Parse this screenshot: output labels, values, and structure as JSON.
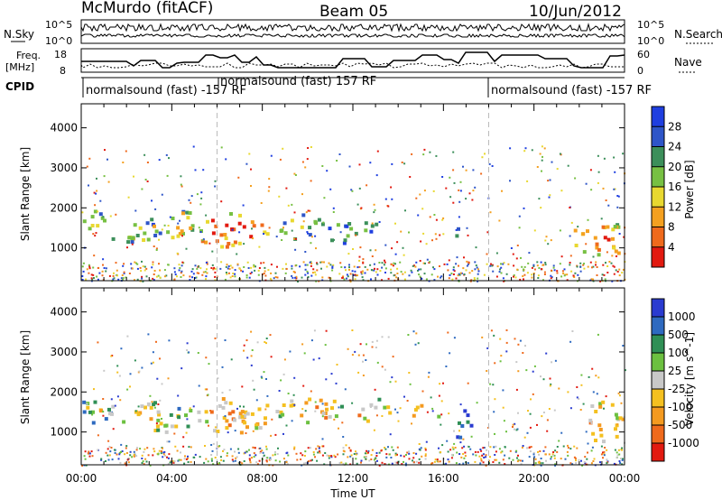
{
  "header": {
    "station": "McMurdo (fitACF)",
    "beam": "Beam 05",
    "date": "10/Jun/2012"
  },
  "top_panels": {
    "nsky_label": "N.Sky",
    "nsearch_label": "N.Search",
    "freq_label_1": "Freq.",
    "freq_label_2": "[MHz]",
    "nave_label": "Nave",
    "cpid_label": "CPID",
    "noise_left_ticks": [
      "10^5",
      "10^0"
    ],
    "noise_right_ticks": [
      "10^5",
      "10^0"
    ],
    "freq_ticks": [
      "18",
      "8"
    ],
    "nave_ticks": [
      "60",
      "0"
    ],
    "cpid_segments": [
      {
        "label": "normalsound (fast) -157 RF"
      },
      {
        "label": "normalsound (fast) 157 RF"
      },
      {
        "label": "normalsound (fast) -157 RF"
      }
    ]
  },
  "chart_data": [
    {
      "type": "heatmap",
      "name": "power",
      "ylabel": "Slant Range [km]",
      "ylim": [
        180,
        4600
      ],
      "yticks": [
        "1000",
        "2000",
        "3000",
        "4000"
      ],
      "xticks": [
        "00:00",
        "04:00",
        "08:00",
        "12:00",
        "16:00",
        "20:00",
        "00:00"
      ],
      "colorbar_label": "Power [dB]",
      "colorbar_ticks": [
        "4",
        "8",
        "12",
        "16",
        "20",
        "24",
        "28"
      ],
      "colorbar_colors": [
        "#1f3fe0",
        "#2e55c8",
        "#3c8f5a",
        "#77c043",
        "#e8d830",
        "#f4a020",
        "#ef6a1c",
        "#e21a10"
      ],
      "blobs": [
        {
          "t": 0.6,
          "r": 1700,
          "dt": 0.7,
          "dr": 300,
          "level": 0.45
        },
        {
          "t": 2.4,
          "r": 1400,
          "dt": 1.2,
          "dr": 300,
          "level": 0.5
        },
        {
          "t": 4.0,
          "r": 1650,
          "dt": 1.6,
          "dr": 350,
          "level": 0.65
        },
        {
          "t": 6.6,
          "r": 1450,
          "dt": 1.6,
          "dr": 450,
          "level": 0.85
        },
        {
          "t": 9.6,
          "r": 1600,
          "dt": 1.1,
          "dr": 350,
          "level": 0.45
        },
        {
          "t": 11.4,
          "r": 1400,
          "dt": 0.8,
          "dr": 300,
          "level": 0.4
        },
        {
          "t": 13.0,
          "r": 1600,
          "dt": 0.6,
          "dr": 250,
          "level": 0.45
        },
        {
          "t": 16.4,
          "r": 1400,
          "dt": 0.3,
          "dr": 250,
          "level": 0.35
        },
        {
          "t": 22.8,
          "r": 1250,
          "dt": 1.2,
          "dr": 500,
          "level": 0.8
        }
      ]
    },
    {
      "type": "heatmap",
      "name": "velocity",
      "ylabel": "Slant Range [km]",
      "ylim": [
        180,
        4600
      ],
      "yticks": [
        "1000",
        "2000",
        "3000",
        "4000"
      ],
      "xticks": [
        "00:00",
        "04:00",
        "08:00",
        "12:00",
        "16:00",
        "20:00",
        "00:00"
      ],
      "xlabel": "Time UT",
      "colorbar_label": "Velocity [m s^-1]",
      "colorbar_ticks": [
        "1000",
        "500",
        "100",
        "25",
        "-25",
        "-100",
        "-500",
        "-1000"
      ],
      "colorbar_colors": [
        "#2a3bd0",
        "#2e6ac0",
        "#2f8f55",
        "#6cc040",
        "#c8c8c8",
        "#f4c020",
        "#f49a20",
        "#ef6a1c",
        "#e21a10"
      ],
      "blobs": [
        {
          "t": 0.6,
          "r": 1600,
          "dt": 0.8,
          "dr": 350,
          "level": 0.55
        },
        {
          "t": 3.0,
          "r": 1400,
          "dt": 2.0,
          "dr": 400,
          "level": 0.55
        },
        {
          "t": 6.8,
          "r": 1450,
          "dt": 2.0,
          "dr": 450,
          "level": 0.7
        },
        {
          "t": 10.0,
          "r": 1600,
          "dt": 1.5,
          "dr": 350,
          "level": 0.72
        },
        {
          "t": 12.8,
          "r": 1600,
          "dt": 0.9,
          "dr": 300,
          "level": 0.72
        },
        {
          "t": 15.2,
          "r": 1500,
          "dt": 0.6,
          "dr": 250,
          "level": 0.72
        },
        {
          "t": 16.8,
          "r": 1200,
          "dt": 0.4,
          "dr": 400,
          "level": 0.3
        },
        {
          "t": 23.0,
          "r": 1300,
          "dt": 1.1,
          "dr": 500,
          "level": 0.72
        }
      ]
    }
  ]
}
